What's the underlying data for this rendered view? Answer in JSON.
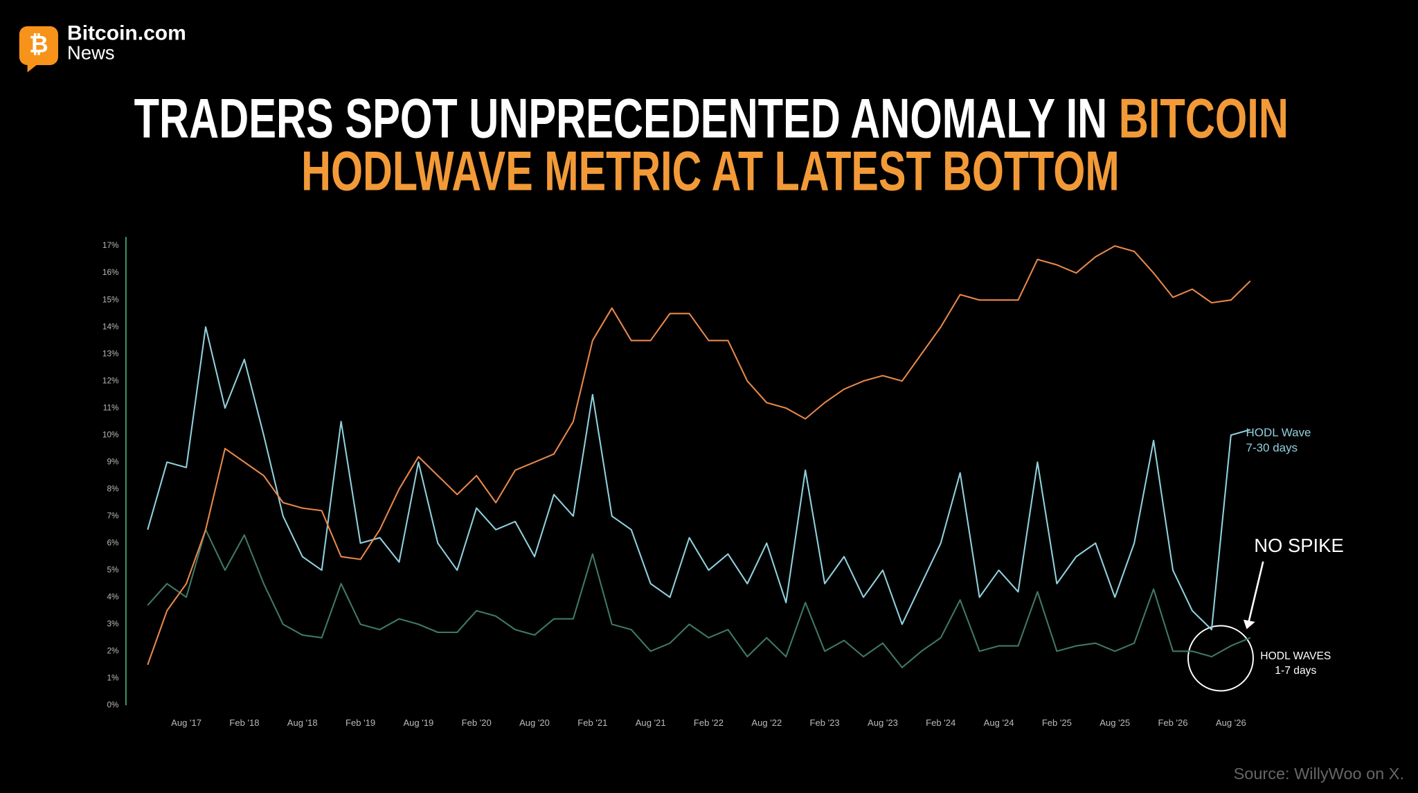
{
  "header": {
    "brand": "Bitcoin.com",
    "sub": "News",
    "logo": "₿"
  },
  "title": {
    "line1": [
      "TRADERS SPOT UNPRECEDENTED ANOMALY IN ",
      "BITCOIN"
    ],
    "line2": "HODLWAVE METRIC AT LATEST BOTTOM"
  },
  "source": "Source: WillyWoo on X.",
  "chart_data": {
    "type": "line",
    "categories": [
      null,
      null,
      "Aug '17",
      null,
      null,
      "Feb '18",
      null,
      null,
      "Aug '18",
      null,
      null,
      "Feb '19",
      null,
      null,
      "Aug '19",
      null,
      null,
      "Feb '20",
      null,
      null,
      "Aug '20",
      null,
      null,
      "Feb '21",
      null,
      null,
      "Aug '21",
      null,
      null,
      "Feb '22",
      null,
      null,
      "Aug '22",
      null,
      null,
      "Feb '23",
      null,
      null,
      "Aug '23",
      null,
      null,
      "Feb '24",
      null,
      null,
      "Aug '24",
      null,
      null,
      "Feb '25",
      null,
      null,
      "Aug '25",
      null,
      null,
      "Feb '26",
      null,
      null,
      "Aug '26",
      null
    ],
    "series": [
      {
        "color": "#e8884a",
        "values": [
          1.5,
          3.5,
          4.5,
          6.5,
          9.5,
          9.0,
          8.5,
          7.5,
          7.3,
          7.2,
          5.5,
          5.4,
          6.5,
          8.0,
          9.2,
          8.5,
          7.8,
          8.5,
          7.5,
          8.7,
          9.0,
          9.3,
          10.5,
          13.5,
          14.7,
          13.5,
          13.5,
          14.5,
          14.5,
          13.5,
          13.5,
          12.0,
          11.2,
          11.0,
          10.6,
          11.2,
          11.7,
          12.0,
          12.2,
          12.0,
          13.0,
          14.0,
          15.2,
          15.0,
          15.0,
          15.0,
          16.5,
          16.3,
          16.0,
          16.6,
          17.0,
          16.8,
          16.0,
          15.1,
          15.4,
          14.9,
          15.0,
          15.7
        ]
      },
      {
        "color": "#8fd0dc",
        "values": [
          6.5,
          9.0,
          8.8,
          14.0,
          11.0,
          12.8,
          10.0,
          7.0,
          5.5,
          5.0,
          10.5,
          6.0,
          6.2,
          5.3,
          9.0,
          6.0,
          5.0,
          7.3,
          6.5,
          6.8,
          5.5,
          7.8,
          7.0,
          11.5,
          7.0,
          6.5,
          4.5,
          4.0,
          6.2,
          5.0,
          5.6,
          4.5,
          6.0,
          3.8,
          8.7,
          4.5,
          5.5,
          4.0,
          5.0,
          3.0,
          4.5,
          6.0,
          8.6,
          4.0,
          5.0,
          4.2,
          9.0,
          4.5,
          5.5,
          6.0,
          4.0,
          6.0,
          9.8,
          5.0,
          3.5,
          2.8,
          10.0,
          10.2
        ]
      },
      {
        "color": "#3e7a64",
        "values": [
          3.7,
          4.5,
          4.0,
          6.5,
          5.0,
          6.3,
          4.5,
          3.0,
          2.6,
          2.5,
          4.5,
          3.0,
          2.8,
          3.2,
          3.0,
          2.7,
          2.7,
          3.5,
          3.3,
          2.8,
          2.6,
          3.2,
          3.2,
          5.6,
          3.0,
          2.8,
          2.0,
          2.3,
          3.0,
          2.5,
          2.8,
          1.8,
          2.5,
          1.8,
          3.8,
          2.0,
          2.4,
          1.8,
          2.3,
          1.4,
          2.0,
          2.5,
          3.9,
          2.0,
          2.2,
          2.2,
          4.2,
          2.0,
          2.2,
          2.3,
          2.0,
          2.3,
          4.3,
          2.0,
          2.0,
          1.8,
          2.2,
          2.5
        ]
      }
    ],
    "ylim": [
      0,
      17
    ],
    "yticks": [
      {
        "value": 0,
        "label": "0%"
      },
      {
        "value": 1,
        "label": "1%"
      },
      {
        "value": 2,
        "label": "2%"
      },
      {
        "value": 3,
        "label": "3%"
      },
      {
        "value": 4,
        "label": "4%"
      },
      {
        "value": 5,
        "label": "5%"
      },
      {
        "value": 6,
        "label": "6%"
      },
      {
        "value": 7,
        "label": "7%"
      },
      {
        "value": 8,
        "label": "8%"
      },
      {
        "value": 9,
        "label": "9%"
      },
      {
        "value": 10,
        "label": "10%"
      },
      {
        "value": 11,
        "label": "11%"
      },
      {
        "value": 12,
        "label": "12%"
      },
      {
        "value": 13,
        "label": "13%"
      },
      {
        "value": 14,
        "label": "14%"
      },
      {
        "value": 15,
        "label": "15%"
      },
      {
        "value": 16,
        "label": "16%"
      },
      {
        "value": 17,
        "label": "17%"
      }
    ],
    "annotations": [
      "HODL Wave",
      "7-30 days",
      "NO SPIKE",
      "HODL WAVES",
      "1-7 days"
    ]
  }
}
